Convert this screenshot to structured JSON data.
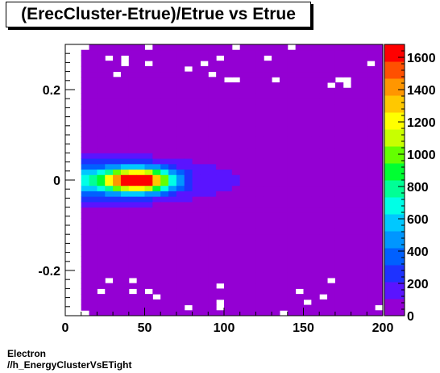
{
  "chart_data": {
    "type": "heatmap",
    "title": "(ErecCluster-Etrue)/Etrue vs Etrue",
    "xlabel": "",
    "ylabel": "",
    "xlim": [
      0,
      200
    ],
    "ylim": [
      -0.3,
      0.3
    ],
    "x_ticks": [
      0,
      50,
      100,
      150,
      200
    ],
    "x_tick_labels": [
      "0",
      "50",
      "100",
      "150",
      "200"
    ],
    "y_ticks": [
      -0.2,
      0,
      0.2
    ],
    "y_tick_labels": [
      "-0.2",
      "0",
      "0.2"
    ],
    "z_range": [
      0,
      1680
    ],
    "z_ticks": [
      0,
      200,
      400,
      600,
      800,
      1000,
      1200,
      1400,
      1600
    ],
    "z_tick_labels": [
      "0",
      "200",
      "400",
      "600",
      "800",
      "1000",
      "1200",
      "1400",
      "1600"
    ],
    "peak": {
      "x": 45,
      "y": 0.0,
      "count": 1650
    },
    "colorbar": true,
    "palette": [
      "#9400d3",
      "#5a14ff",
      "#1e32ff",
      "#0060ff",
      "#0096ff",
      "#00c8ff",
      "#00ffe6",
      "#00ff96",
      "#00ff32",
      "#64ff00",
      "#c8ff00",
      "#ffff00",
      "#ffc800",
      "#ff9600",
      "#ff5000",
      "#ff0000"
    ]
  },
  "footer": {
    "line1": "Electron",
    "line2": "//h_EnergyClusterVsETight"
  }
}
